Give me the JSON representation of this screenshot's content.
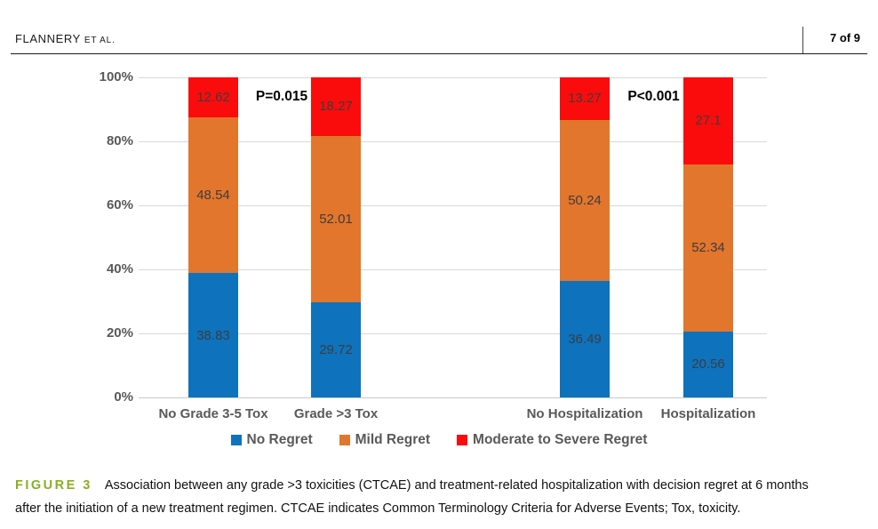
{
  "header": {
    "author": "FLANNERY",
    "etal": "ET AL.",
    "page_number": "7 of 9"
  },
  "chart_data": {
    "type": "bar",
    "subtype": "stacked-percent-column",
    "categories": [
      "No Grade 3-5 Tox",
      "Grade >3 Tox",
      "No Hospitalization",
      "Hospitalization"
    ],
    "series": [
      {
        "name": "No Regret",
        "color": "#0e72bd",
        "values": [
          38.83,
          29.72,
          36.49,
          20.56
        ]
      },
      {
        "name": "Mild Regret",
        "color": "#e2762d",
        "values": [
          48.54,
          52.01,
          50.24,
          52.34
        ]
      },
      {
        "name": "Moderate to Severe Regret",
        "color": "#fb0c0c",
        "values": [
          12.62,
          18.27,
          13.27,
          27.1
        ]
      }
    ],
    "annotations": [
      {
        "text": "P=0.015",
        "between": [
          0,
          1
        ]
      },
      {
        "text": "P<0.001",
        "between": [
          2,
          3
        ]
      }
    ],
    "y_ticks": [
      "0%",
      "20%",
      "40%",
      "60%",
      "80%",
      "100%"
    ],
    "ylim": [
      0,
      100
    ],
    "grid": true,
    "legend_position": "bottom",
    "title": "",
    "xlabel": "",
    "ylabel": ""
  },
  "caption": {
    "label": "FIGURE 3",
    "line1": "Association between any grade >3 toxicities (CTCAE) and treatment-related hospitalization with decision regret at 6 months",
    "line2": "after the initiation of a new treatment regimen. CTCAE indicates Common Terminology Criteria for Adverse Events; Tox, toxicity."
  }
}
